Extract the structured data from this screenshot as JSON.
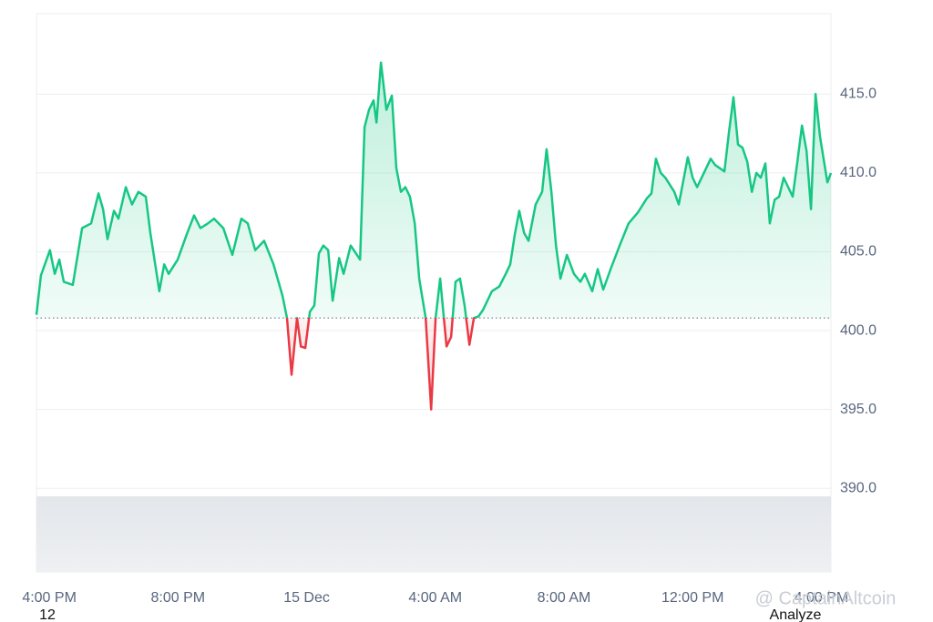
{
  "chart_data": {
    "type": "area",
    "x": [
      15.6,
      15.74,
      16.02,
      16.17,
      16.31,
      16.45,
      16.73,
      17.02,
      17.3,
      17.53,
      17.67,
      17.81,
      18.01,
      18.15,
      18.38,
      18.57,
      18.77,
      19.0,
      19.14,
      19.42,
      19.57,
      19.71,
      19.99,
      20.27,
      20.5,
      20.7,
      20.93,
      21.12,
      21.41,
      21.69,
      21.97,
      22.17,
      22.4,
      22.68,
      22.97,
      23.25,
      23.39,
      23.53,
      23.7,
      23.82,
      23.96,
      24.1,
      24.24,
      24.38,
      24.52,
      24.67,
      24.81,
      25.01,
      25.15,
      25.37,
      25.66,
      25.8,
      25.94,
      26.08,
      26.17,
      26.31,
      26.48,
      26.65,
      26.79,
      26.93,
      27.07,
      27.21,
      27.36,
      27.5,
      27.7,
      27.87,
      28.01,
      28.15,
      28.35,
      28.49,
      28.63,
      28.77,
      28.91,
      29.06,
      29.2,
      29.34,
      29.48,
      29.76,
      29.99,
      30.19,
      30.33,
      30.47,
      30.61,
      30.76,
      30.9,
      31.12,
      31.32,
      31.46,
      31.61,
      31.75,
      31.89,
      32.09,
      32.31,
      32.51,
      32.65,
      32.88,
      33.05,
      33.22,
      33.45,
      33.73,
      34.01,
      34.3,
      34.58,
      34.72,
      34.86,
      35.01,
      35.15,
      35.43,
      35.57,
      35.85,
      36.0,
      36.14,
      36.28,
      36.56,
      36.7,
      36.99,
      37.13,
      37.27,
      37.41,
      37.55,
      37.7,
      37.84,
      37.98,
      38.12,
      38.26,
      38.4,
      38.55,
      38.69,
      38.83,
      39.11,
      39.25,
      39.4,
      39.54,
      39.68,
      39.82,
      39.96,
      40.19,
      40.3
    ],
    "values": [
      401.0,
      403.5,
      405.1,
      403.6,
      404.5,
      403.1,
      402.9,
      406.5,
      406.8,
      408.7,
      407.7,
      405.8,
      407.6,
      407.1,
      409.1,
      408.0,
      408.8,
      408.5,
      406.2,
      402.5,
      404.2,
      403.6,
      404.5,
      406.1,
      407.3,
      406.5,
      406.8,
      407.1,
      406.5,
      404.8,
      407.1,
      406.8,
      405.1,
      405.7,
      404.2,
      402.2,
      400.8,
      397.2,
      400.8,
      399.0,
      398.9,
      401.2,
      401.6,
      404.9,
      405.4,
      405.1,
      401.9,
      404.6,
      403.6,
      405.4,
      404.5,
      412.9,
      414.0,
      414.6,
      413.2,
      417.0,
      414.0,
      414.9,
      410.3,
      408.8,
      409.1,
      408.5,
      406.8,
      403.3,
      400.8,
      395.0,
      400.8,
      403.3,
      399.0,
      399.6,
      403.1,
      403.3,
      401.6,
      399.1,
      400.8,
      400.9,
      401.3,
      402.5,
      402.8,
      403.6,
      404.2,
      406.1,
      407.6,
      406.2,
      405.7,
      408.0,
      408.8,
      411.5,
      408.8,
      405.4,
      403.3,
      404.8,
      403.6,
      403.1,
      403.6,
      402.5,
      403.9,
      402.6,
      403.9,
      405.4,
      406.8,
      407.5,
      408.4,
      408.7,
      410.9,
      410.0,
      409.7,
      408.8,
      408.0,
      411.0,
      409.7,
      409.1,
      409.7,
      410.9,
      410.5,
      410.1,
      412.6,
      414.8,
      411.8,
      411.6,
      410.7,
      408.8,
      410.0,
      409.7,
      410.6,
      406.8,
      408.3,
      408.5,
      409.7,
      408.5,
      410.6,
      413.0,
      411.4,
      407.7,
      415.0,
      412.3,
      409.4,
      410.0
    ],
    "baseline": 400.8,
    "color": "#16c784",
    "negative_color": "#ea3943",
    "xlim": [
      15.6,
      40.3
    ],
    "ylim": [
      384.7,
      420.1
    ],
    "xticks": [
      {
        "value": 16,
        "label": "4:00 PM"
      },
      {
        "value": 20,
        "label": "8:00 PM"
      },
      {
        "value": 24,
        "label": "15 Dec"
      },
      {
        "value": 28,
        "label": "4:00 AM"
      },
      {
        "value": 32,
        "label": "8:00 AM"
      },
      {
        "value": 36,
        "label": "12:00 PM"
      },
      {
        "value": 40,
        "label": "4:00 PM"
      }
    ],
    "yticks": [
      {
        "value": 390,
        "label": "390.0"
      },
      {
        "value": 395,
        "label": "395.0"
      },
      {
        "value": 400,
        "label": "400.0"
      },
      {
        "value": 405,
        "label": "405.0"
      },
      {
        "value": 410,
        "label": "410.0"
      },
      {
        "value": 415,
        "label": "415.0"
      }
    ],
    "grid": true
  },
  "footer": {
    "left": "12",
    "right": "Analyze",
    "watermark": "@ CaptainAltcoin"
  }
}
